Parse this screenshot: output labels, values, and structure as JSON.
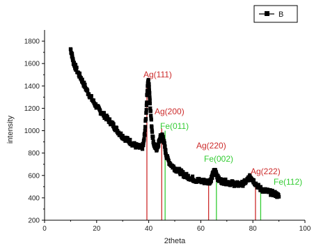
{
  "chart_data": {
    "type": "scatter",
    "xlabel": "2theta",
    "ylabel": "intensity",
    "xlim": [
      0,
      100
    ],
    "ylim": [
      200,
      1900
    ],
    "x_ticks": [
      0,
      20,
      40,
      60,
      80,
      100
    ],
    "y_ticks": [
      200,
      400,
      600,
      800,
      1000,
      1200,
      1400,
      1600,
      1800
    ],
    "grid": false,
    "legend": {
      "position": "top-right",
      "entries": [
        "B"
      ]
    },
    "series": [
      {
        "name": "B",
        "color": "#000000",
        "points": [
          [
            10,
            1730
          ],
          [
            10.5,
            1680
          ],
          [
            11,
            1620
          ],
          [
            11.5,
            1590
          ],
          [
            12,
            1560
          ],
          [
            13,
            1510
          ],
          [
            14,
            1470
          ],
          [
            15,
            1420
          ],
          [
            16,
            1370
          ],
          [
            17,
            1330
          ],
          [
            18,
            1290
          ],
          [
            19,
            1250
          ],
          [
            20,
            1215
          ],
          [
            21,
            1185
          ],
          [
            22,
            1160
          ],
          [
            23,
            1135
          ],
          [
            24,
            1110
          ],
          [
            25,
            1085
          ],
          [
            26,
            1060
          ],
          [
            27,
            1030
          ],
          [
            28,
            1000
          ],
          [
            29,
            970
          ],
          [
            30,
            950
          ],
          [
            31,
            930
          ],
          [
            32,
            915
          ],
          [
            33,
            900
          ],
          [
            34,
            880
          ],
          [
            35,
            865
          ],
          [
            36,
            855
          ],
          [
            37,
            845
          ],
          [
            37.5,
            850
          ],
          [
            38,
            880
          ],
          [
            38.5,
            980
          ],
          [
            39,
            1150
          ],
          [
            39.3,
            1300
          ],
          [
            39.6,
            1410
          ],
          [
            39.9,
            1440
          ],
          [
            40.2,
            1380
          ],
          [
            40.5,
            1250
          ],
          [
            41,
            1080
          ],
          [
            41.5,
            950
          ],
          [
            42,
            880
          ],
          [
            42.5,
            850
          ],
          [
            43,
            840
          ],
          [
            43.5,
            860
          ],
          [
            44,
            900
          ],
          [
            44.5,
            940
          ],
          [
            45,
            960
          ],
          [
            45.5,
            940
          ],
          [
            46,
            880
          ],
          [
            46.5,
            810
          ],
          [
            47,
            760
          ],
          [
            48,
            715
          ],
          [
            49,
            685
          ],
          [
            50,
            665
          ],
          [
            51,
            650
          ],
          [
            52,
            635
          ],
          [
            53,
            615
          ],
          [
            54,
            600
          ],
          [
            55,
            590
          ],
          [
            56,
            580
          ],
          [
            57,
            570
          ],
          [
            58,
            560
          ],
          [
            59,
            555
          ],
          [
            60,
            550
          ],
          [
            61,
            548
          ],
          [
            62,
            545
          ],
          [
            63,
            545
          ],
          [
            63.5,
            550
          ],
          [
            64,
            570
          ],
          [
            64.5,
            600
          ],
          [
            65,
            630
          ],
          [
            65.5,
            640
          ],
          [
            66,
            620
          ],
          [
            66.5,
            580
          ],
          [
            67,
            560
          ],
          [
            68,
            550
          ],
          [
            69,
            545
          ],
          [
            70,
            540
          ],
          [
            71,
            535
          ],
          [
            72,
            530
          ],
          [
            73,
            525
          ],
          [
            74,
            520
          ],
          [
            75,
            520
          ],
          [
            76,
            525
          ],
          [
            77,
            540
          ],
          [
            78,
            560
          ],
          [
            78.5,
            575
          ],
          [
            79,
            585
          ],
          [
            79.5,
            580
          ],
          [
            80,
            560
          ],
          [
            81,
            530
          ],
          [
            82,
            500
          ],
          [
            83,
            480
          ],
          [
            84,
            470
          ],
          [
            85,
            460
          ],
          [
            86,
            455
          ],
          [
            87,
            445
          ],
          [
            88,
            440
          ],
          [
            89,
            430
          ],
          [
            90,
            410
          ]
        ]
      }
    ],
    "reference_lines": [
      {
        "x": 39.3,
        "label": "Ag(111)",
        "color": "#cc2a2a",
        "top": 1400
      },
      {
        "x": 45.0,
        "label": "Ag(200)",
        "color": "#cc2a2a",
        "top": 1020
      },
      {
        "x": 46.3,
        "label": "Fe(011)",
        "color": "#33cc33",
        "top": 1000
      },
      {
        "x": 63.0,
        "label": "Ag(220)",
        "color": "#cc2a2a",
        "top": 560
      },
      {
        "x": 66.0,
        "label": "Fe(002)",
        "color": "#33cc33",
        "top": 580
      },
      {
        "x": 81.0,
        "label": "Ag(222)",
        "color": "#cc2a2a",
        "top": 540
      },
      {
        "x": 83.0,
        "label": "Fe(112)",
        "color": "#33cc33",
        "top": 470
      }
    ]
  }
}
